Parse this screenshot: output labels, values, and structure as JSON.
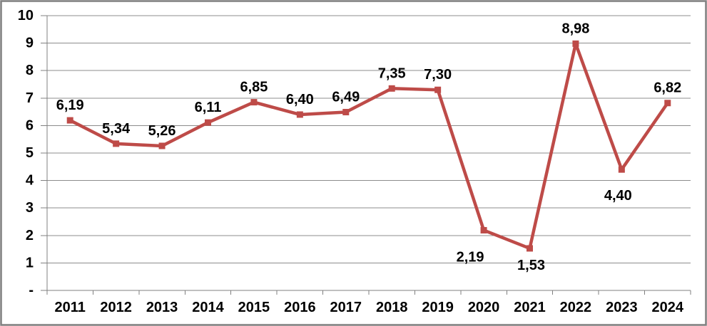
{
  "chart_data": {
    "type": "line",
    "title": "",
    "xlabel": "",
    "ylabel": "",
    "categories": [
      "2011",
      "2012",
      "2013",
      "2014",
      "2015",
      "2016",
      "2017",
      "2018",
      "2019",
      "2020",
      "2021",
      "2022",
      "2023",
      "2024"
    ],
    "series": [
      {
        "name": "value",
        "values": [
          6.19,
          5.34,
          5.26,
          6.11,
          6.85,
          6.4,
          6.49,
          7.35,
          7.3,
          2.19,
          1.53,
          8.98,
          4.4,
          6.82
        ],
        "value_labels": [
          "6,19",
          "5,34",
          "5,26",
          "6,11",
          "6,85",
          "6,40",
          "6,49",
          "7,35",
          "7,30",
          "2,19",
          "1,53",
          "8,98",
          "4,40",
          "6,82"
        ],
        "color": "#BE4B48",
        "marker": "square",
        "label_offsets": [
          {
            "dx": 0,
            "dy": -21
          },
          {
            "dx": 0,
            "dy": -21
          },
          {
            "dx": 0,
            "dy": -21
          },
          {
            "dx": 0,
            "dy": -21
          },
          {
            "dx": 0,
            "dy": -21
          },
          {
            "dx": 0,
            "dy": -21
          },
          {
            "dx": 0,
            "dy": -21
          },
          {
            "dx": 0,
            "dy": -21
          },
          {
            "dx": 0,
            "dy": -21
          },
          {
            "dx": -19,
            "dy": 38
          },
          {
            "dx": 2,
            "dy": 24
          },
          {
            "dx": 0,
            "dy": -21
          },
          {
            "dx": -5,
            "dy": 37
          },
          {
            "dx": 0,
            "dy": -21
          }
        ]
      }
    ],
    "ylim": [
      0,
      10
    ],
    "y_tick_step": 1,
    "y_tick_labels": [
      "-",
      "1",
      "2",
      "3",
      "4",
      "5",
      "6",
      "7",
      "8",
      "9",
      "10"
    ],
    "grid": "horizontal",
    "legend": "none"
  },
  "colors": {
    "background": "#ffffff",
    "frame_border": "#7f7f7f",
    "gridline": "#8c8c8c",
    "axis": "#808080",
    "tick": "#808080",
    "label_text": "#000000",
    "series": "#BE4B48"
  }
}
